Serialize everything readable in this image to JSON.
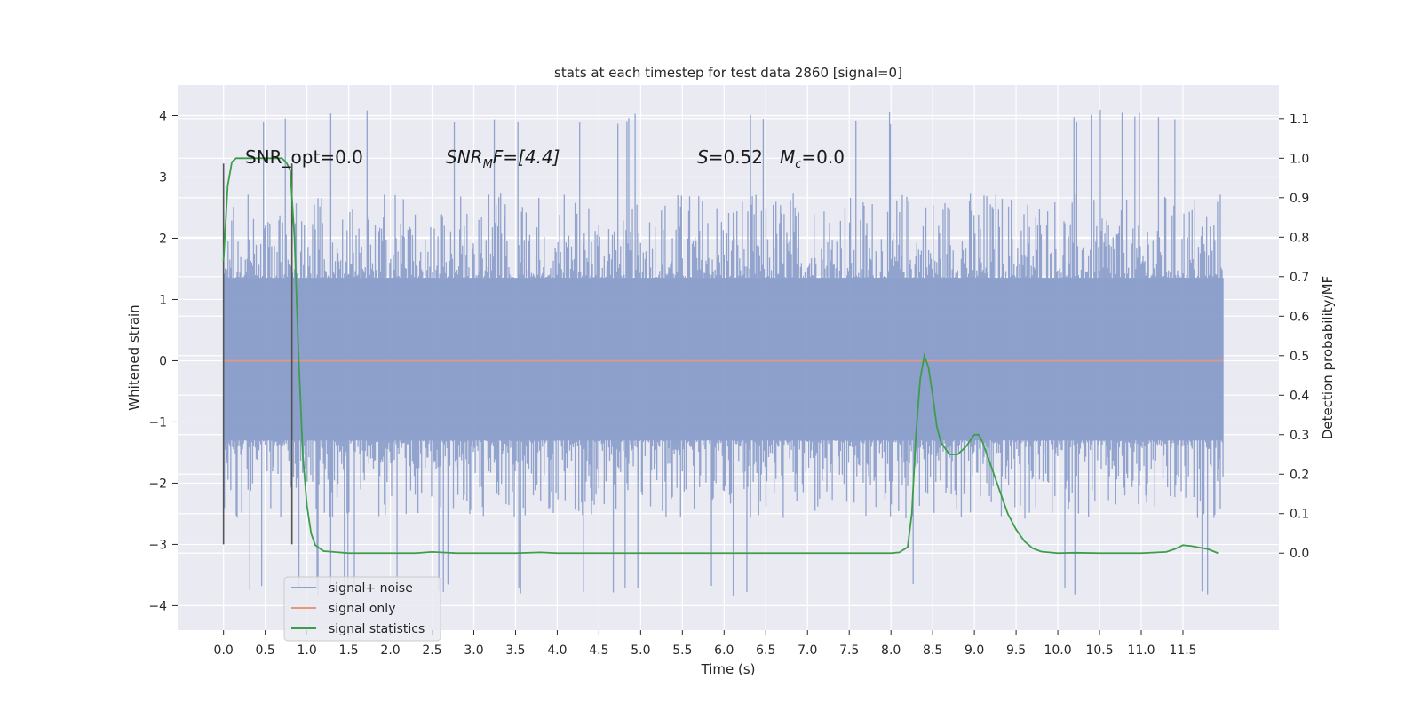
{
  "chart_data": {
    "type": "line",
    "title": "stats at each timestep for test data 2860 [signal=0]",
    "xlabel": "Time (s)",
    "ylabel_left": "Whitened strain",
    "ylabel_right": "Detection probability/MF",
    "xlim": [
      -0.55,
      12.65
    ],
    "ylim_left": [
      -4.4,
      4.5
    ],
    "ylim_right": [
      -0.195,
      1.185
    ],
    "x_ticks": [
      0.0,
      0.5,
      1.0,
      1.5,
      2.0,
      2.5,
      3.0,
      3.5,
      4.0,
      4.5,
      5.0,
      5.5,
      6.0,
      6.5,
      7.0,
      7.5,
      8.0,
      8.5,
      9.0,
      9.5,
      10.0,
      10.5,
      11.0,
      11.5
    ],
    "x_tick_labels": [
      "0.0",
      "0.5",
      "1.0",
      "1.5",
      "2.0",
      "2.5",
      "3.0",
      "3.5",
      "4.0",
      "4.5",
      "5.0",
      "5.5",
      "6.0",
      "6.5",
      "7.0",
      "7.5",
      "8.0",
      "8.5",
      "9.0",
      "9.5",
      "10.0",
      "10.5",
      "11.0",
      "11.5"
    ],
    "y_left_ticks": [
      -4,
      -3,
      -2,
      -1,
      0,
      1,
      2,
      3,
      4
    ],
    "y_left_tick_labels": [
      "−4",
      "−3",
      "−2",
      "−1",
      "0",
      "1",
      "2",
      "3",
      "4"
    ],
    "y_right_ticks": [
      0.0,
      0.1,
      0.2,
      0.3,
      0.4,
      0.5,
      0.6,
      0.7,
      0.8,
      0.9,
      1.0,
      1.1
    ],
    "y_right_tick_labels": [
      "0.0",
      "0.1",
      "0.2",
      "0.3",
      "0.4",
      "0.5",
      "0.6",
      "0.7",
      "0.8",
      "0.9",
      "1.0",
      "1.1"
    ],
    "grid": true,
    "legend_position": "bottom-left",
    "colors": {
      "background": "#eaeaf2",
      "grid": "#ffffff",
      "noise": "#8da0cb",
      "signal": "#e9967a",
      "stats": "#3a9e4a",
      "markers": "#555555"
    },
    "annotations": {
      "snr_opt": "SNR_opt=0.0",
      "snr_mf_label": "SNR",
      "snr_mf_sub": "M",
      "snr_mf_value": "F=[4.4]",
      "s_label": "S",
      "s_value": "=0.52",
      "mc_label": "M",
      "mc_sub": "c",
      "mc_value": "=0.0"
    },
    "markers_x": [
      0.0,
      0.82
    ],
    "series": [
      {
        "name": "signal+ noise",
        "axis": "left",
        "x_range": [
          0.0,
          11.98
        ],
        "band_low": -1.3,
        "band_high": 1.35,
        "peak_max": 4.1,
        "peak_min": -3.85
      },
      {
        "name": "signal only",
        "axis": "left",
        "x": [
          0.0,
          11.98
        ],
        "y": [
          0.0,
          0.0
        ]
      },
      {
        "name": "signal statistics",
        "axis": "right",
        "x": [
          0.0,
          0.05,
          0.1,
          0.15,
          0.2,
          0.4,
          0.6,
          0.7,
          0.75,
          0.8,
          0.85,
          0.9,
          0.95,
          1.0,
          1.05,
          1.1,
          1.2,
          1.5,
          2.0,
          2.3,
          2.5,
          2.8,
          3.5,
          3.8,
          4.0,
          6.0,
          8.0,
          8.1,
          8.2,
          8.25,
          8.3,
          8.35,
          8.4,
          8.45,
          8.5,
          8.55,
          8.6,
          8.7,
          8.8,
          8.9,
          9.0,
          9.05,
          9.1,
          9.2,
          9.3,
          9.4,
          9.5,
          9.6,
          9.7,
          9.8,
          10.0,
          10.2,
          10.5,
          11.0,
          11.3,
          11.4,
          11.5,
          11.6,
          11.8,
          11.92
        ],
        "y": [
          0.74,
          0.93,
          0.99,
          1.0,
          1.0,
          1.0,
          1.0,
          1.0,
          0.99,
          0.97,
          0.8,
          0.5,
          0.25,
          0.12,
          0.05,
          0.02,
          0.005,
          0.0,
          0.0,
          0.0,
          0.003,
          0.0,
          0.0,
          0.002,
          0.0,
          0.0,
          0.0,
          0.002,
          0.015,
          0.1,
          0.3,
          0.44,
          0.5,
          0.47,
          0.4,
          0.32,
          0.28,
          0.25,
          0.25,
          0.27,
          0.3,
          0.3,
          0.28,
          0.22,
          0.16,
          0.1,
          0.06,
          0.03,
          0.012,
          0.004,
          0.0,
          0.001,
          0.0,
          0.0,
          0.003,
          0.01,
          0.02,
          0.018,
          0.01,
          0.0
        ]
      }
    ]
  }
}
